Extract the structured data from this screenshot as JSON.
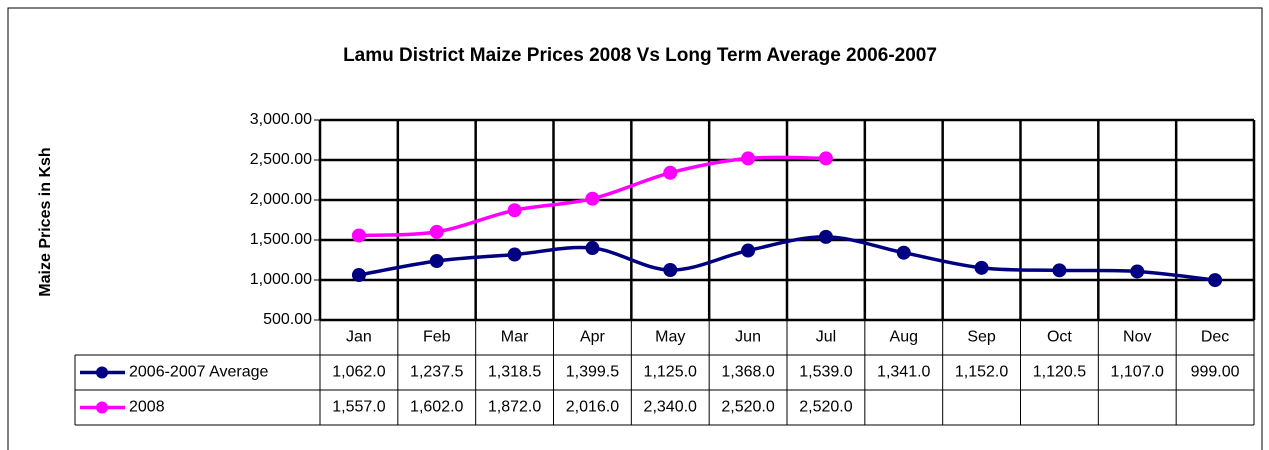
{
  "chart_data": {
    "type": "line",
    "title": "Lamu District Maize Prices 2008 Vs Long Term Average 2006-2007",
    "y_label": "Maize Prices in Ksh",
    "categories": [
      "Jan",
      "Feb",
      "Mar",
      "Apr",
      "May",
      "Jun",
      "Jul",
      "Aug",
      "Sep",
      "Oct",
      "Nov",
      "Dec"
    ],
    "series": [
      {
        "name": "2006-2007 Average",
        "color": "#000080",
        "values": [
          1062,
          1237.5,
          1318.5,
          1399.5,
          1125,
          1368,
          1539,
          1341,
          1152,
          1120.5,
          1107,
          999
        ],
        "value_labels": [
          "1,062.0",
          "1,237.5",
          "1,318.5",
          "1,399.5",
          "1,125.0",
          "1,368.0",
          "1,539.0",
          "1,341.0",
          "1,152.0",
          "1,120.5",
          "1,107.0",
          "999.00"
        ]
      },
      {
        "name": "2008",
        "color": "#ff00ff",
        "values": [
          1557,
          1602,
          1872,
          2016,
          2340,
          2520,
          2520,
          null,
          null,
          null,
          null,
          null
        ],
        "value_labels": [
          "1,557.0",
          "1,602.0",
          "1,872.0",
          "2,016.0",
          "2,340.0",
          "2,520.0",
          "2,520.0",
          null,
          null,
          null,
          null,
          null
        ]
      }
    ],
    "ylim": [
      500,
      3000
    ],
    "yticks": [
      {
        "value": 500,
        "label": "500.00"
      },
      {
        "value": 1000,
        "label": "1,000.00"
      },
      {
        "value": 1500,
        "label": "1,500.00"
      },
      {
        "value": 2000,
        "label": "2,000.00"
      },
      {
        "value": 2500,
        "label": "2,500.00"
      },
      {
        "value": 3000,
        "label": "3,000.00"
      }
    ],
    "grid": true
  }
}
